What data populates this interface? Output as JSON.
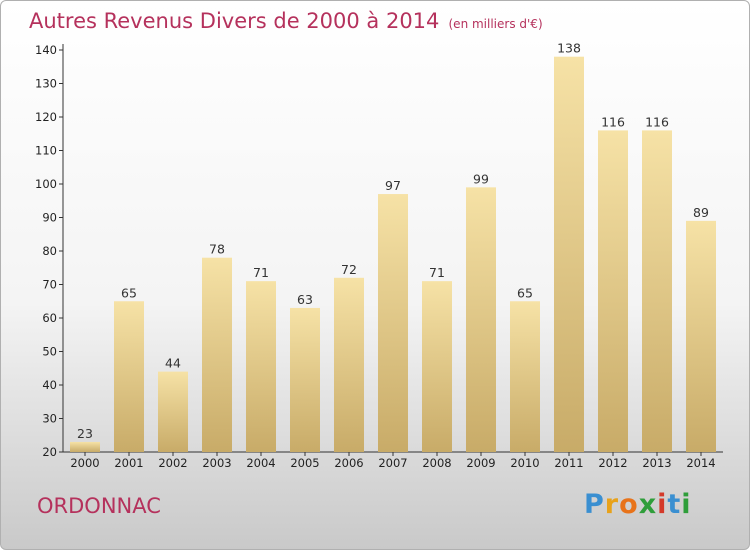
{
  "header": {
    "title": "Autres Revenus Divers de 2000 à 2014",
    "unit": "(en milliers d'€)"
  },
  "footer": {
    "commune": "ORDONNAC",
    "logo_letters": [
      "P",
      "r",
      "o",
      "x",
      "i",
      "t",
      "i"
    ],
    "logo_colors": [
      "#3a8fd1",
      "#e8a21a",
      "#e8731a",
      "#2f9e3a",
      "#d43a2a",
      "#3a8fd1",
      "#2f9e3a"
    ]
  },
  "chart_data": {
    "type": "bar",
    "categories": [
      "2000",
      "2001",
      "2002",
      "2003",
      "2004",
      "2005",
      "2006",
      "2007",
      "2008",
      "2009",
      "2010",
      "2011",
      "2012",
      "2013",
      "2014"
    ],
    "values": [
      23,
      65,
      44,
      78,
      71,
      63,
      72,
      97,
      71,
      99,
      65,
      138,
      116,
      116,
      89
    ],
    "title": "Autres Revenus Divers de 2000 à 2014",
    "ylim": [
      20,
      140
    ],
    "yticks": [
      20,
      30,
      40,
      50,
      60,
      70,
      80,
      90,
      100,
      110,
      120,
      130,
      140
    ],
    "grid": false,
    "bar_color_top": "#f6e2a6",
    "bar_color_bottom": "#c8ab68"
  }
}
